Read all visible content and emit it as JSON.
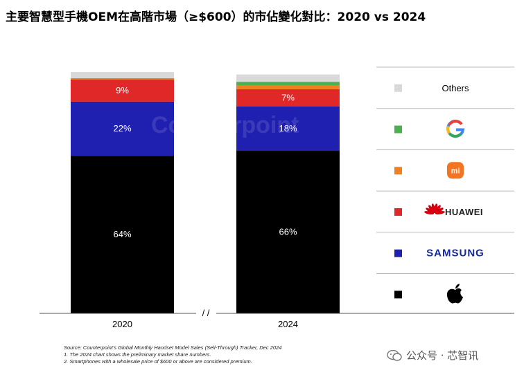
{
  "title": "主要智慧型手機OEM在高階市場（≥$600）的市佔變化對比：2020 vs 2024",
  "chart_data": {
    "type": "bar",
    "stacked": true,
    "categories": [
      "2020",
      "2024"
    ],
    "axis_break_label": "/ /",
    "series": [
      {
        "name": "Apple",
        "color": "#000000",
        "values": [
          64,
          66
        ],
        "labels": [
          "64%",
          "66%"
        ]
      },
      {
        "name": "SAMSUNG",
        "color": "#2020b0",
        "values": [
          22,
          18
        ],
        "labels": [
          "22%",
          "18%"
        ]
      },
      {
        "name": "HUAWEI",
        "color": "#e02828",
        "values": [
          9,
          7
        ],
        "labels": [
          "9%",
          "7%"
        ]
      },
      {
        "name": "mi",
        "color": "#f08020",
        "values": [
          0.5,
          1.5
        ],
        "labels": [
          "",
          ""
        ]
      },
      {
        "name": "G",
        "color": "#4caf50",
        "values": [
          0,
          1.5
        ],
        "labels": [
          "",
          ""
        ]
      },
      {
        "name": "Others",
        "color": "#d9d9d9",
        "values": [
          2.5,
          3
        ],
        "labels": [
          "",
          ""
        ]
      }
    ],
    "legend_placement": "right",
    "legend_order": [
      "Others",
      "G",
      "mi",
      "HUAWEI",
      "SAMSUNG",
      "Apple"
    ],
    "ylim": [
      0,
      100
    ],
    "grid": false
  },
  "watermark_text": "Counterpoint",
  "footnotes": [
    "Source: Counterpoint's Global Monthly Handset Model Sales (Sell-Through) Tracker, Dec 2024",
    "1. The 2024 chart shows the preliminary market share numbers.",
    "2. Smartphones with a wholesale price of $600 or above are considered premium."
  ],
  "account_label": "公众号 · 芯智讯"
}
